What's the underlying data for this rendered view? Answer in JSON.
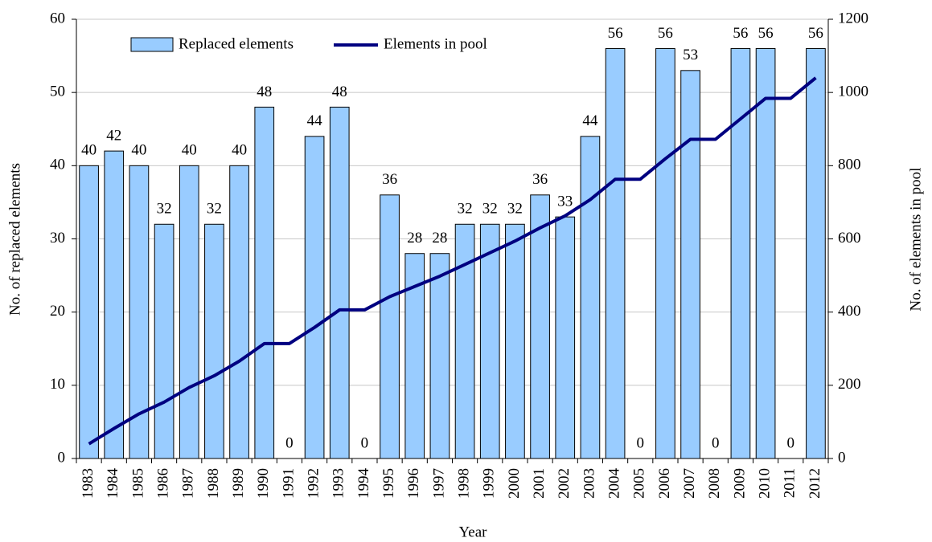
{
  "chart_data": {
    "type": "bar_line",
    "categories": [
      "1983",
      "1984",
      "1985",
      "1986",
      "1987",
      "1988",
      "1989",
      "1990",
      "1991",
      "1992",
      "1993",
      "1994",
      "1995",
      "1996",
      "1997",
      "1998",
      "1999",
      "2000",
      "2001",
      "2002",
      "2003",
      "2004",
      "2005",
      "2006",
      "2007",
      "2008",
      "2009",
      "2010",
      "2011",
      "2012"
    ],
    "series": [
      {
        "name": "Replaced elements",
        "color": "#99ccff",
        "type": "bar",
        "axis": "y",
        "values": [
          40,
          42,
          40,
          32,
          40,
          32,
          40,
          48,
          0,
          44,
          48,
          0,
          36,
          28,
          28,
          32,
          32,
          32,
          36,
          33,
          44,
          56,
          0,
          56,
          53,
          0,
          56,
          56,
          0,
          56
        ]
      },
      {
        "name": "Elements in pool",
        "color": "#000080",
        "type": "line",
        "axis": "y2",
        "values": [
          40,
          82,
          122,
          154,
          194,
          226,
          266,
          314,
          314,
          358,
          406,
          406,
          442,
          470,
          498,
          530,
          562,
          594,
          630,
          663,
          707,
          763,
          763,
          819,
          872,
          872,
          928,
          984,
          984,
          1040
        ]
      }
    ],
    "xlabel": "Year",
    "ylabel": "No. of replaced elements",
    "y2label": "No. of elements in pool",
    "ylim": [
      0,
      60
    ],
    "yticks": [
      0,
      10,
      20,
      30,
      40,
      50,
      60
    ],
    "y2lim": [
      0,
      1200
    ],
    "y2ticks": [
      0,
      200,
      400,
      600,
      800,
      1000,
      1200
    ],
    "grid": true
  }
}
